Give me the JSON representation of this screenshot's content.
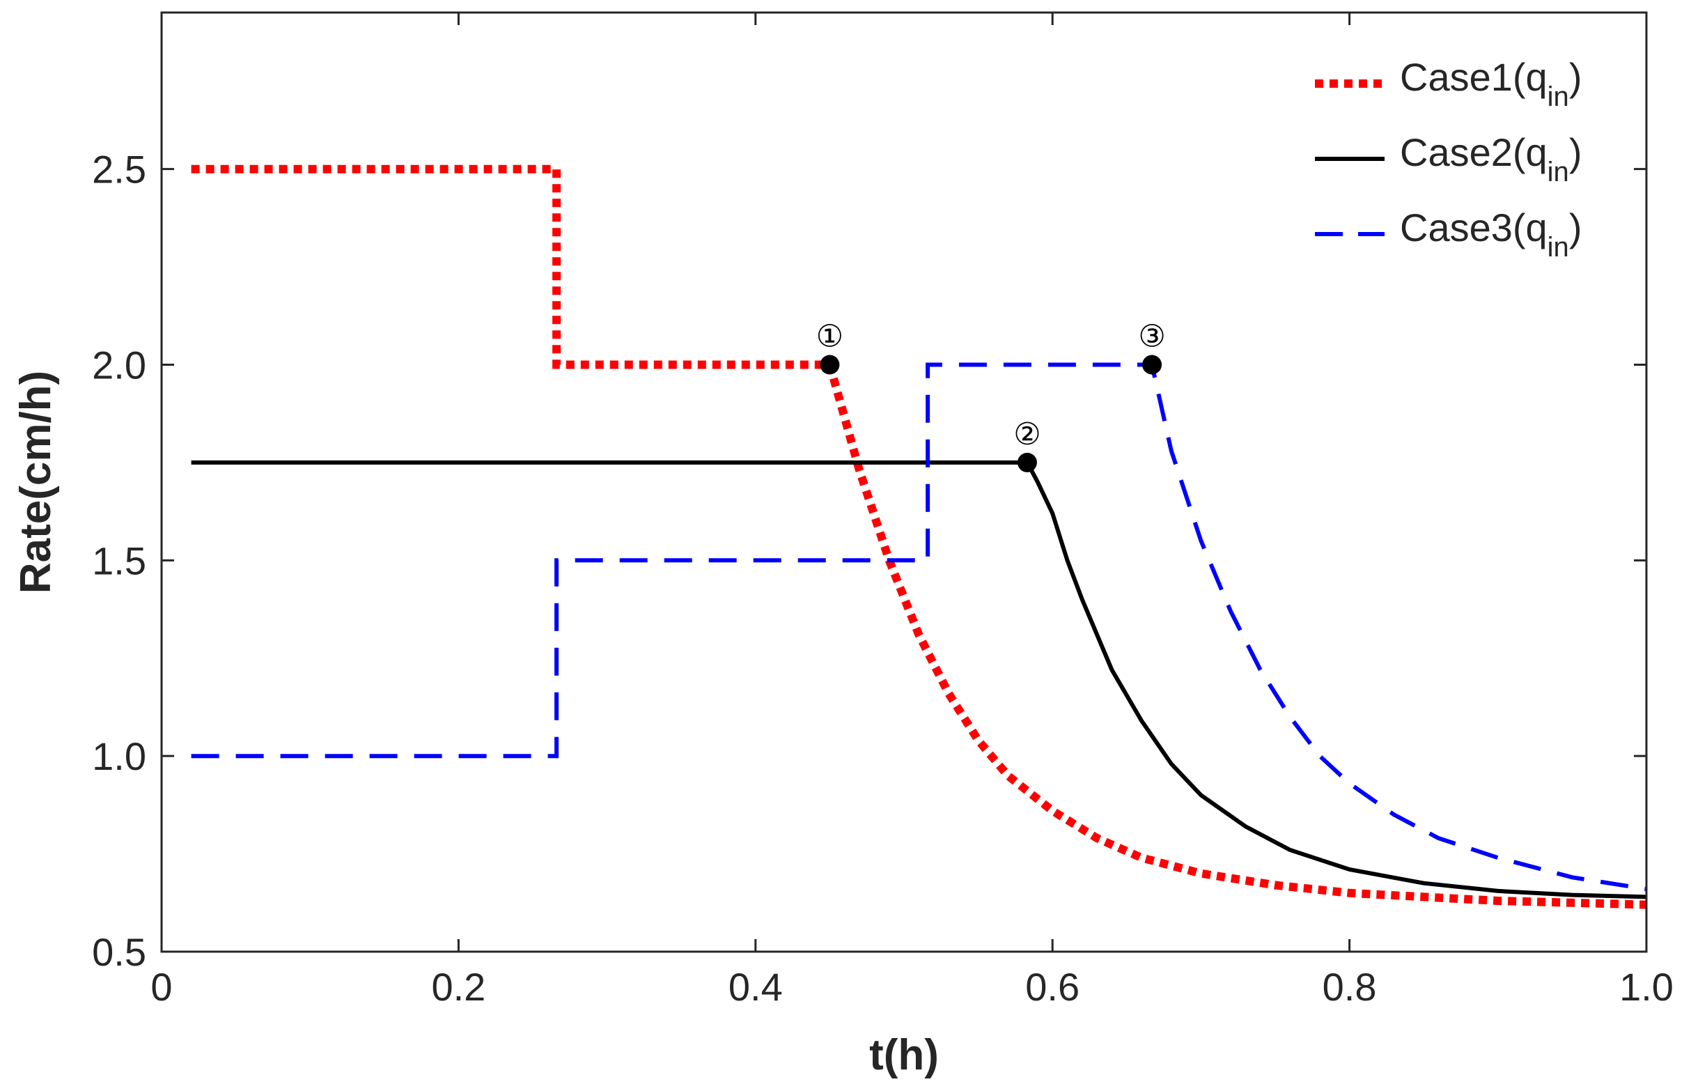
{
  "chart_data": {
    "type": "line",
    "title": "",
    "xlabel": "t(h)",
    "ylabel": "Rate(cm/h)",
    "xlim": [
      0,
      1.0
    ],
    "ylim": [
      0.5,
      2.9
    ],
    "xticks": [
      0,
      0.2,
      0.4,
      0.6,
      0.8,
      1.0
    ],
    "xtick_labels": [
      "0",
      "0.2",
      "0.4",
      "0.6",
      "0.8",
      "1.0"
    ],
    "yticks": [
      0.5,
      1.0,
      1.5,
      2.0,
      2.5
    ],
    "ytick_labels": [
      "0.5",
      "1.0",
      "1.5",
      "2.0",
      "2.5"
    ],
    "grid": false,
    "legend_position": "top-right",
    "series": [
      {
        "name": "Case1(q_in)",
        "legend_main": "Case1(q",
        "legend_sub": "in",
        "legend_close": ")",
        "color": "#ff0000",
        "style": "dotted",
        "x": [
          0.02,
          0.266,
          0.266,
          0.45,
          0.47,
          0.49,
          0.51,
          0.53,
          0.55,
          0.57,
          0.6,
          0.63,
          0.66,
          0.7,
          0.75,
          0.8,
          0.85,
          0.9,
          0.95,
          1.0
        ],
        "y": [
          2.5,
          2.5,
          2.0,
          2.0,
          1.73,
          1.5,
          1.31,
          1.16,
          1.04,
          0.95,
          0.86,
          0.79,
          0.74,
          0.7,
          0.67,
          0.65,
          0.64,
          0.63,
          0.625,
          0.62
        ]
      },
      {
        "name": "Case2(q_in)",
        "legend_main": "Case2(q",
        "legend_sub": "in",
        "legend_close": ")",
        "color": "#000000",
        "style": "solid",
        "x": [
          0.02,
          0.583,
          0.59,
          0.6,
          0.61,
          0.62,
          0.64,
          0.66,
          0.68,
          0.7,
          0.73,
          0.76,
          0.8,
          0.85,
          0.9,
          0.95,
          1.0
        ],
        "y": [
          1.75,
          1.75,
          1.7,
          1.62,
          1.5,
          1.4,
          1.22,
          1.09,
          0.98,
          0.9,
          0.82,
          0.76,
          0.71,
          0.675,
          0.655,
          0.645,
          0.64
        ]
      },
      {
        "name": "Case3(q_in)",
        "legend_main": "Case3(q",
        "legend_sub": "in",
        "legend_close": ")",
        "color": "#0000ff",
        "style": "dashed",
        "x": [
          0.02,
          0.266,
          0.266,
          0.516,
          0.516,
          0.667,
          0.68,
          0.7,
          0.72,
          0.74,
          0.76,
          0.78,
          0.8,
          0.83,
          0.86,
          0.9,
          0.95,
          1.0
        ],
        "y": [
          1.0,
          1.0,
          1.5,
          1.5,
          2.0,
          2.0,
          1.78,
          1.55,
          1.37,
          1.22,
          1.1,
          1.0,
          0.93,
          0.85,
          0.79,
          0.74,
          0.69,
          0.66
        ]
      }
    ],
    "markers": [
      {
        "label": "①",
        "x": 0.45,
        "y": 2.0
      },
      {
        "label": "②",
        "x": 0.583,
        "y": 1.75
      },
      {
        "label": "③",
        "x": 0.667,
        "y": 2.0
      }
    ]
  }
}
